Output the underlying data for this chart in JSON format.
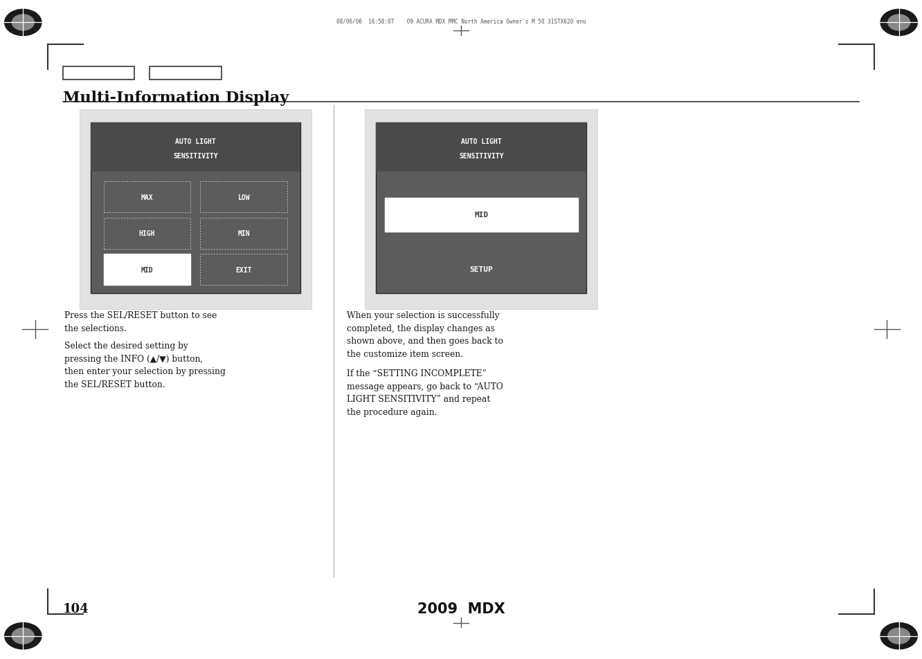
{
  "page_bg": "#ffffff",
  "header_text": "08/06/06  16:58:07    09 ACURA MDX MMC North America Owner's M 50 31STX620 enu",
  "title": "Multi-Information Display",
  "page_number": "104",
  "footer_center": "2009  MDX",
  "left_panel": {
    "title_line1": "AUTO LIGHT",
    "title_line2": "SENSITIVITY",
    "buttons": [
      {
        "label": "MAX",
        "col": 0,
        "row": 0,
        "highlighted": false
      },
      {
        "label": "LOW",
        "col": 1,
        "row": 0,
        "highlighted": false
      },
      {
        "label": "HIGH",
        "col": 0,
        "row": 1,
        "highlighted": false
      },
      {
        "label": "MIN",
        "col": 1,
        "row": 1,
        "highlighted": false
      },
      {
        "label": "MID",
        "col": 0,
        "row": 2,
        "highlighted": true
      },
      {
        "label": "EXIT",
        "col": 1,
        "row": 2,
        "highlighted": false
      }
    ]
  },
  "right_panel": {
    "title_line1": "AUTO LIGHT",
    "title_line2": "SENSITIVITY",
    "mid_label": "MID",
    "setup_label": "SETUP"
  },
  "left_text_para1": "Press the SEL/RESET button to see\nthe selections.",
  "left_text_para2": "Select the desired setting by\npressing the INFO (▲/▼) button,\nthen enter your selection by pressing\nthe SEL/RESET button.",
  "right_text_para1": "When your selection is successfully\ncompleted, the display changes as\nshown above, and then goes back to\nthe customize item screen.",
  "right_text_para2": "If the “SETTING INCOMPLETE”\nmessage appears, go back to “AUTO\nLIGHT SENSITIVITY” and repeat\nthe procedure again."
}
